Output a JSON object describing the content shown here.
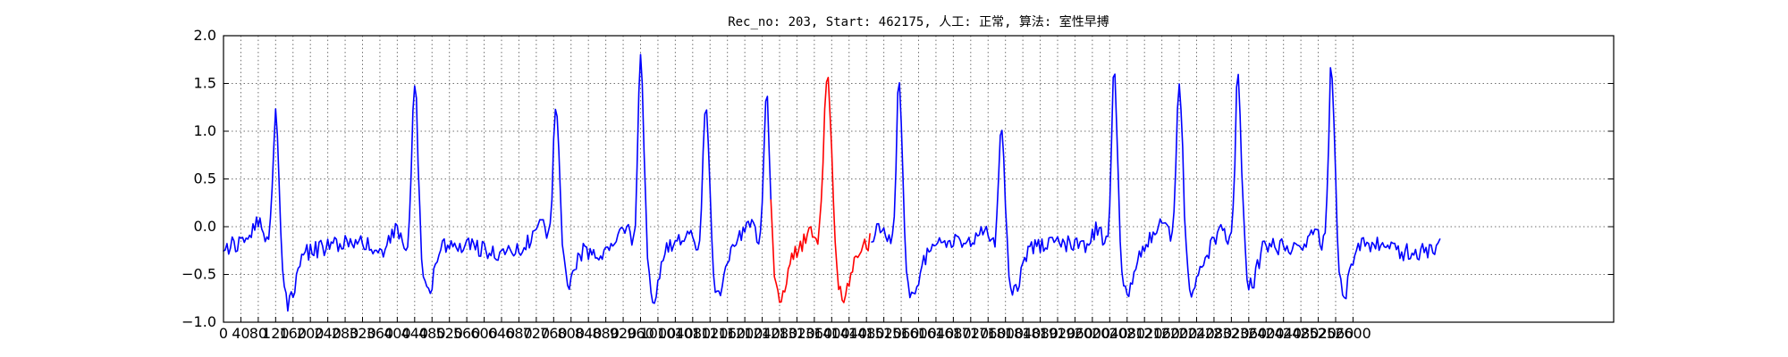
{
  "chart_data": {
    "type": "line",
    "title": "Rec_no: 203, Start: 462175, 人工: 正常, 算法: 室性早搏",
    "xlabel": "",
    "ylabel": "",
    "xlim": [
      0,
      3200
    ],
    "ylim": [
      -1.0,
      2.0
    ],
    "grid": true,
    "yticks": [
      -1.0,
      -0.5,
      0.0,
      0.5,
      1.0,
      1.5,
      2.0
    ],
    "ytick_labels": [
      "−1.0",
      "−0.5",
      "0.0",
      "0.5",
      "1.0",
      "1.5",
      "2.0"
    ],
    "xticks": [
      0,
      40,
      80,
      120,
      160,
      200,
      240,
      280,
      320,
      360,
      400,
      440,
      480,
      520,
      560,
      600,
      640,
      680,
      720,
      760,
      800,
      840,
      880,
      920,
      960,
      1000,
      1040,
      1080,
      1120,
      1160,
      1200,
      1240,
      1280,
      1320,
      1360,
      1400,
      1440,
      1480,
      1520,
      1560,
      1600,
      1640,
      1680,
      1720,
      1760,
      1800,
      1840,
      1880,
      1920,
      1960,
      2000,
      2040,
      2080,
      2120,
      2160,
      2200,
      2240,
      2280,
      2320,
      2360,
      2400,
      2440,
      2480,
      2520,
      2560,
      2600
    ],
    "x_max_data": 2800,
    "baseline_noise": 0.09,
    "beats": [
      {
        "pos": 120,
        "amp": 1.28,
        "wL": 6,
        "wR": 8,
        "dip": 0.55,
        "dipW": 14
      },
      {
        "pos": 440,
        "amp": 1.68,
        "wL": 6,
        "wR": 8,
        "dip": 0.45,
        "dipW": 16
      },
      {
        "pos": 765,
        "amp": 1.3,
        "wL": 6,
        "wR": 8,
        "dip": 0.4,
        "dipW": 14
      },
      {
        "pos": 960,
        "amp": 1.75,
        "wL": 6,
        "wR": 8,
        "dip": 0.55,
        "dipW": 14
      },
      {
        "pos": 1110,
        "amp": 1.45,
        "wL": 6,
        "wR": 8,
        "dip": 0.45,
        "dipW": 14
      },
      {
        "pos": 1250,
        "amp": 1.4,
        "wL": 6,
        "wR": 8,
        "dip": 0.55,
        "dipW": 14
      },
      {
        "pos": 1390,
        "amp": 1.7,
        "wL": 8,
        "wR": 10,
        "dip": 0.55,
        "dipW": 18
      },
      {
        "pos": 1555,
        "amp": 1.7,
        "wL": 6,
        "wR": 8,
        "dip": 0.5,
        "dipW": 16
      },
      {
        "pos": 1790,
        "amp": 1.2,
        "wL": 6,
        "wR": 8,
        "dip": 0.4,
        "dipW": 14
      },
      {
        "pos": 2050,
        "amp": 1.7,
        "wL": 6,
        "wR": 8,
        "dip": 0.45,
        "dipW": 14
      },
      {
        "pos": 2200,
        "amp": 1.62,
        "wL": 6,
        "wR": 8,
        "dip": 0.45,
        "dipW": 14
      },
      {
        "pos": 2335,
        "amp": 1.62,
        "wL": 6,
        "wR": 8,
        "dip": 0.45,
        "dipW": 14
      },
      {
        "pos": 2550,
        "amp": 1.75,
        "wL": 6,
        "wR": 8,
        "dip": 0.5,
        "dipW": 14
      }
    ],
    "highlight": {
      "from": 1260,
      "to": 1490
    },
    "series": [
      {
        "color": "#0000ff"
      },
      {
        "color": "#ff0000"
      }
    ]
  }
}
